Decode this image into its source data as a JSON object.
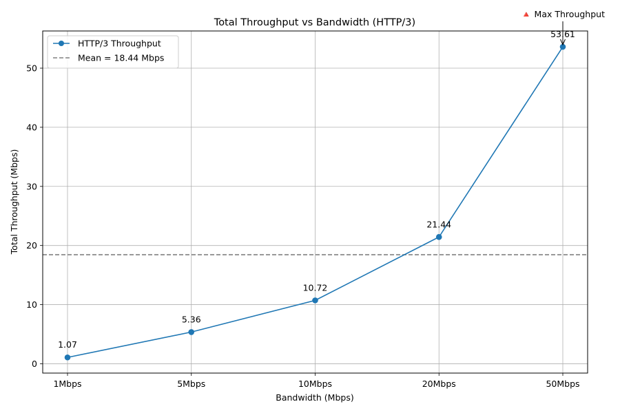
{
  "chart_data": {
    "type": "line",
    "title": "Total Throughput vs Bandwidth (HTTP/3)",
    "xlabel": "Bandwidth (Mbps)",
    "ylabel": "Total Throughput (Mbps)",
    "categories": [
      "1Mbps",
      "5Mbps",
      "10Mbps",
      "20Mbps",
      "50Mbps"
    ],
    "series": [
      {
        "name": "HTTP/3 Throughput",
        "values": [
          1.07,
          5.36,
          10.72,
          21.44,
          53.61
        ],
        "labels": [
          "1.07",
          "5.36",
          "10.72",
          "21.44",
          "53.61"
        ],
        "color": "#1f77b4"
      }
    ],
    "mean_line": {
      "value": 18.44,
      "label": "Mean = 18.44 Mbps",
      "color": "#808080"
    },
    "annotation": {
      "text": "🔺 Max Throughput",
      "category_index": 4,
      "value": 53.61
    },
    "ylim": [
      -1.58,
      56.29
    ],
    "yticks": [
      0,
      10,
      20,
      30,
      40,
      50
    ],
    "grid": true,
    "legend_position": "top-left"
  }
}
